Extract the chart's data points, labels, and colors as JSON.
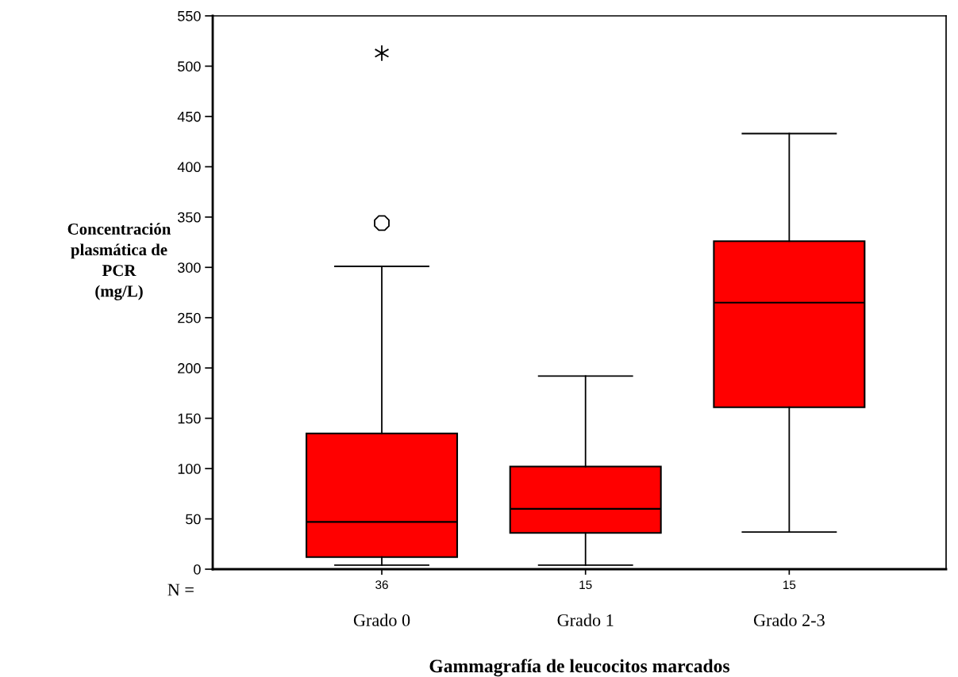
{
  "chart_data": {
    "type": "box",
    "xlabel": "Gammagrafía de leucocitos marcados",
    "ylabel": "Concentración\nplasmática de\nPCR\n(mg/L)",
    "categories": [
      "Grado 0",
      "Grado 1",
      "Grado 2-3"
    ],
    "series": [
      {
        "color": "#ff0000",
        "boxes": [
          {
            "low": 4,
            "q1": 12,
            "median": 47,
            "q3": 135,
            "high": 301,
            "outliers": [
              344,
              513
            ]
          },
          {
            "low": 4,
            "q1": 36,
            "median": 60,
            "q3": 102,
            "high": 192
          },
          {
            "low": 37,
            "q1": 161,
            "median": 265,
            "q3": 326,
            "high": 433
          }
        ]
      }
    ],
    "ylim": [
      0,
      550
    ],
    "yticks": [
      0,
      50,
      100,
      150,
      200,
      250,
      300,
      350,
      400,
      450,
      500,
      550
    ],
    "grid": false,
    "annotations": [
      "N =",
      "36",
      "15",
      "15"
    ]
  }
}
